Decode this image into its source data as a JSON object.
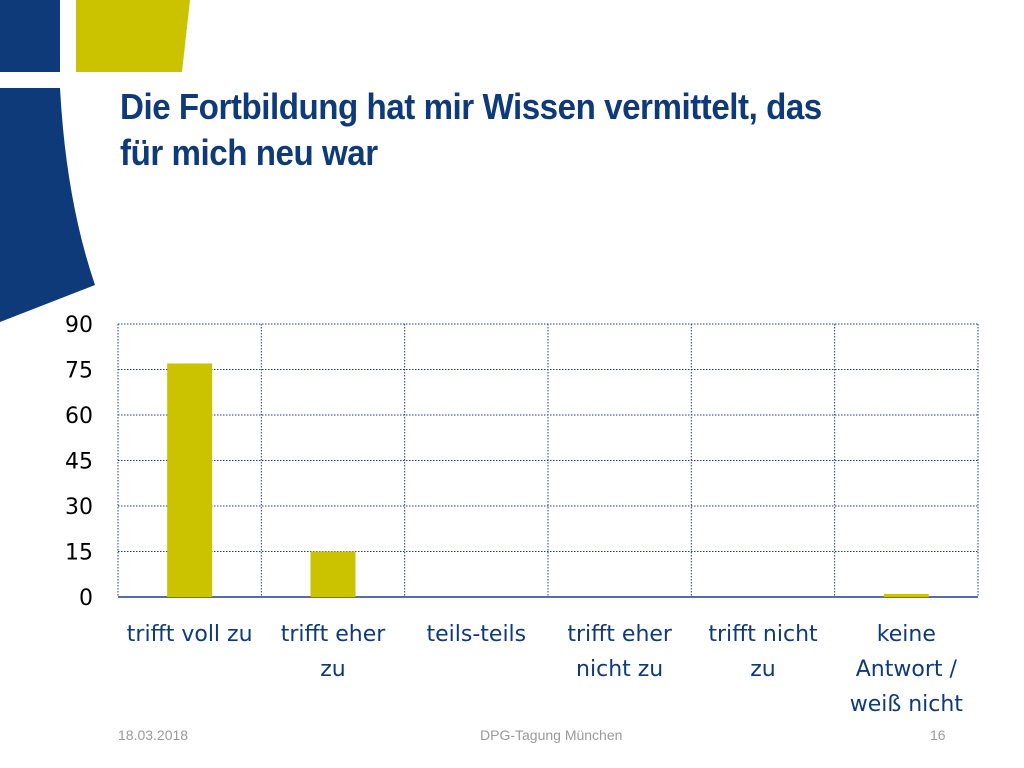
{
  "slide": {
    "title_line1": "Die Fortbildung hat mir Wissen vermittelt, das",
    "title_line2": "für mich neu war",
    "footer_date": "18.03.2018",
    "footer_event": "DPG-Tagung München",
    "page_number": "16",
    "colors": {
      "title": "#0e3a7a",
      "deco_blue": "#0e3a7a",
      "deco_yellow": "#cbc200",
      "bar": "#cbc200",
      "grid": "#1f3f8a"
    }
  },
  "chart_data": {
    "type": "bar",
    "categories": [
      [
        "trifft voll zu"
      ],
      [
        "trifft eher",
        "zu"
      ],
      [
        "teils-teils"
      ],
      [
        "trifft eher",
        "nicht zu"
      ],
      [
        "trifft nicht",
        "zu"
      ],
      [
        "keine",
        "Antwort /",
        "weiß nicht"
      ]
    ],
    "values": [
      77,
      15,
      0,
      0,
      0,
      1
    ],
    "ylim": [
      0,
      90
    ],
    "yticks": [
      0,
      15,
      30,
      45,
      60,
      75,
      90
    ],
    "grid": true,
    "legend": "none"
  }
}
